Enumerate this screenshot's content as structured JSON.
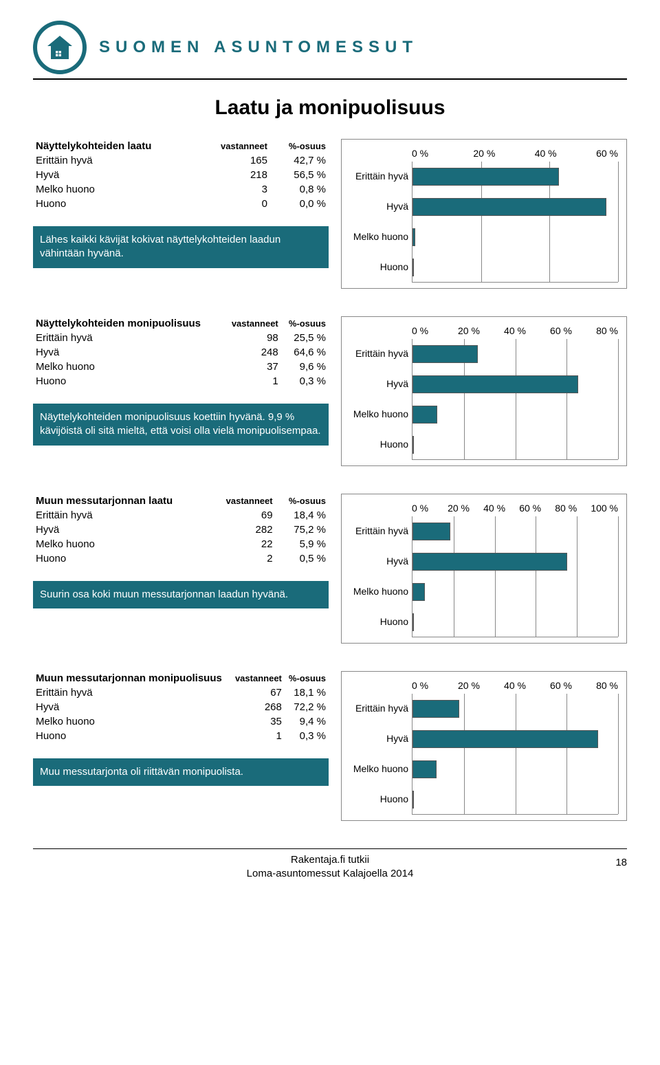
{
  "brand": "SUOMEN ASUNTOMESSUT",
  "logo_colors": {
    "ring": "#1a6b7a",
    "fill": "#1a6b7a"
  },
  "page_title": "Laatu ja monipuolisuus",
  "bar_color": "#1a6b7a",
  "caption_bg": "#1a6b7a",
  "sections": [
    {
      "table_title": "Näyttelykohteiden laatu",
      "col_respond": "vastanneet",
      "col_pct": "%-osuus",
      "rows": [
        {
          "label": "Erittäin hyvä",
          "n": "165",
          "pct": "42,7 %",
          "v": 42.7
        },
        {
          "label": "Hyvä",
          "n": "218",
          "pct": "56,5 %",
          "v": 56.5
        },
        {
          "label": "Melko huono",
          "n": "3",
          "pct": "0,8 %",
          "v": 0.8
        },
        {
          "label": "Huono",
          "n": "0",
          "pct": "0,0 %",
          "v": 0.0
        }
      ],
      "caption": "Lähes kaikki kävijät kokivat näyttelykohteiden laadun vähintään hyvänä.",
      "axis_max": 60,
      "axis_ticks": [
        "0 %",
        "20 %",
        "40 %",
        "60 %"
      ]
    },
    {
      "table_title": "Näyttelykohteiden monipuolisuus",
      "col_respond": "vastanneet",
      "col_pct": "%-osuus",
      "rows": [
        {
          "label": "Erittäin hyvä",
          "n": "98",
          "pct": "25,5 %",
          "v": 25.5
        },
        {
          "label": "Hyvä",
          "n": "248",
          "pct": "64,6 %",
          "v": 64.6
        },
        {
          "label": "Melko huono",
          "n": "37",
          "pct": "9,6 %",
          "v": 9.6
        },
        {
          "label": "Huono",
          "n": "1",
          "pct": "0,3 %",
          "v": 0.3
        }
      ],
      "caption": "Näyttelykohteiden monipuolisuus koettiin hyvänä. 9,9 % kävijöistä oli sitä mieltä, että voisi olla vielä monipuolisempaa.",
      "axis_max": 80,
      "axis_ticks": [
        "0 %",
        "20 %",
        "40 %",
        "60 %",
        "80 %"
      ]
    },
    {
      "table_title": "Muun messutarjonnan laatu",
      "col_respond": "vastanneet",
      "col_pct": "%-osuus",
      "rows": [
        {
          "label": "Erittäin hyvä",
          "n": "69",
          "pct": "18,4 %",
          "v": 18.4
        },
        {
          "label": "Hyvä",
          "n": "282",
          "pct": "75,2 %",
          "v": 75.2
        },
        {
          "label": "Melko huono",
          "n": "22",
          "pct": "5,9 %",
          "v": 5.9
        },
        {
          "label": "Huono",
          "n": "2",
          "pct": "0,5 %",
          "v": 0.5
        }
      ],
      "caption": "Suurin osa koki muun messutarjonnan laadun hyvänä.",
      "axis_max": 100,
      "axis_ticks": [
        "0 %",
        "20 %",
        "40 %",
        "60 %",
        "80 %",
        "100 %"
      ]
    },
    {
      "table_title": "Muun messutarjonnan monipuolisuus",
      "col_respond": "vastanneet",
      "col_pct": "%-osuus",
      "rows": [
        {
          "label": "Erittäin hyvä",
          "n": "67",
          "pct": "18,1 %",
          "v": 18.1
        },
        {
          "label": "Hyvä",
          "n": "268",
          "pct": "72,2 %",
          "v": 72.2
        },
        {
          "label": "Melko huono",
          "n": "35",
          "pct": "9,4 %",
          "v": 9.4
        },
        {
          "label": "Huono",
          "n": "1",
          "pct": "0,3 %",
          "v": 0.3
        }
      ],
      "caption": "Muu messutarjonta oli riittävän monipuolista.",
      "axis_max": 80,
      "axis_ticks": [
        "0 %",
        "20 %",
        "40 %",
        "60 %",
        "80 %"
      ]
    }
  ],
  "footer_line1": "Rakentaja.fi tutkii",
  "footer_line2": "Loma-asuntomessut Kalajoella 2014",
  "page_number": "18"
}
